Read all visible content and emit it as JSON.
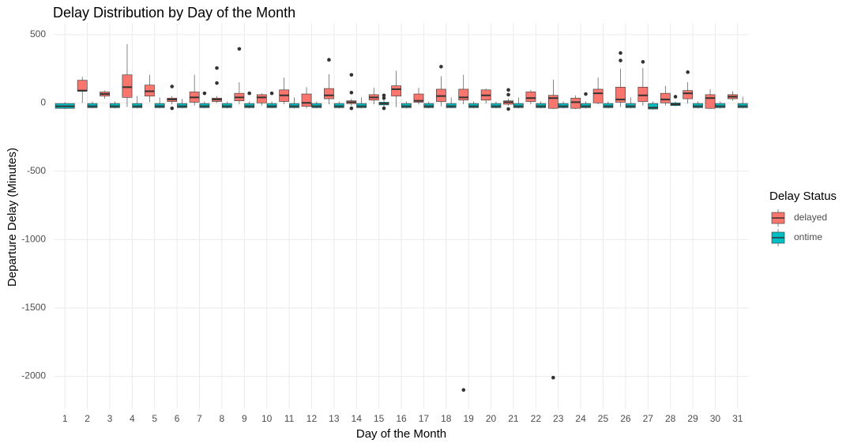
{
  "chart_data": {
    "type": "box",
    "title": "Delay Distribution by Day of the Month",
    "x_label": "Day of the Month",
    "y_label": "Departure Delay (Minutes)",
    "legend_title": "Delay Status",
    "legend_position": "right",
    "grid": true,
    "ylim": [
      -2240,
      585
    ],
    "yticks": [
      500,
      0,
      -500,
      -1000,
      -1500,
      -2000
    ],
    "categories": [
      "1",
      "2",
      "3",
      "4",
      "5",
      "6",
      "7",
      "8",
      "9",
      "10",
      "11",
      "12",
      "13",
      "14",
      "15",
      "16",
      "17",
      "18",
      "19",
      "20",
      "21",
      "22",
      "23",
      "24",
      "25",
      "26",
      "27",
      "28",
      "29",
      "30",
      "31"
    ],
    "series": [
      {
        "name": "delayed",
        "color": "#F8766D",
        "boxes": [
          null,
          {
            "min": 0,
            "q1": 85,
            "median": 90,
            "q3": 165,
            "max": 190
          },
          {
            "min": 30,
            "q1": 50,
            "median": 65,
            "q3": 80,
            "max": 90
          },
          {
            "min": -30,
            "q1": 40,
            "median": 115,
            "q3": 205,
            "max": 430
          },
          {
            "min": 5,
            "q1": 50,
            "median": 85,
            "q3": 130,
            "max": 205
          },
          {
            "min": -10,
            "q1": 10,
            "median": 25,
            "q3": 35,
            "max": 50,
            "outliers": [
              120,
              -40
            ]
          },
          {
            "min": -20,
            "q1": 5,
            "median": 40,
            "q3": 80,
            "max": 205
          },
          {
            "min": 0,
            "q1": 10,
            "median": 25,
            "q3": 35,
            "max": 50,
            "outliers": [
              255,
              145
            ]
          },
          {
            "min": -10,
            "q1": 15,
            "median": 40,
            "q3": 70,
            "max": 150,
            "outliers": [
              395
            ]
          },
          {
            "min": -20,
            "q1": 0,
            "median": 40,
            "q3": 60,
            "max": 70
          },
          {
            "min": -10,
            "q1": 10,
            "median": 55,
            "q3": 95,
            "max": 185
          },
          {
            "min": -40,
            "q1": -25,
            "median": 0,
            "q3": 65,
            "max": 115
          },
          {
            "min": -10,
            "q1": 30,
            "median": 55,
            "q3": 105,
            "max": 210,
            "outliers": [
              315
            ]
          },
          {
            "min": -20,
            "q1": -5,
            "median": 5,
            "q3": 15,
            "max": 30,
            "outliers": [
              205,
              75,
              -40
            ]
          },
          {
            "min": -10,
            "q1": 20,
            "median": 40,
            "q3": 60,
            "max": 110
          },
          {
            "min": -30,
            "q1": 50,
            "median": 100,
            "q3": 125,
            "max": 235
          },
          {
            "min": -10,
            "q1": 5,
            "median": 15,
            "q3": 65,
            "max": 110
          },
          {
            "min": -25,
            "q1": 10,
            "median": 50,
            "q3": 100,
            "max": 195,
            "outliers": [
              265
            ]
          },
          {
            "min": -10,
            "q1": 20,
            "median": 40,
            "q3": 100,
            "max": 205,
            "outliers": [
              -2100
            ]
          },
          {
            "min": -5,
            "q1": 20,
            "median": 55,
            "q3": 95,
            "max": 105
          },
          {
            "min": -20,
            "q1": -10,
            "median": 5,
            "q3": 15,
            "max": 30,
            "outliers": [
              95,
              60,
              -45
            ]
          },
          {
            "min": -10,
            "q1": 10,
            "median": 35,
            "q3": 80,
            "max": 95
          },
          {
            "min": -45,
            "q1": -40,
            "median": 35,
            "q3": 55,
            "max": 170,
            "outliers": [
              -2010
            ]
          },
          {
            "min": -45,
            "q1": -40,
            "median": 5,
            "q3": 35,
            "max": 55
          },
          {
            "min": -10,
            "q1": 0,
            "median": 70,
            "q3": 100,
            "max": 185
          },
          {
            "min": -30,
            "q1": 5,
            "median": 25,
            "q3": 115,
            "max": 250,
            "outliers": [
              365,
              310
            ]
          },
          {
            "min": -20,
            "q1": 10,
            "median": 55,
            "q3": 115,
            "max": 255,
            "outliers": [
              300
            ]
          },
          {
            "min": -20,
            "q1": 0,
            "median": 25,
            "q3": 70,
            "max": 125
          },
          {
            "min": -5,
            "q1": 30,
            "median": 70,
            "q3": 90,
            "max": 150,
            "outliers": [
              225
            ]
          },
          {
            "min": -45,
            "q1": -40,
            "median": 35,
            "q3": 60,
            "max": 100
          },
          {
            "min": 15,
            "q1": 30,
            "median": 45,
            "q3": 60,
            "max": 85
          }
        ]
      },
      {
        "name": "ontime",
        "color": "#00BFC4",
        "boxes": [
          {
            "min": -45,
            "q1": -40,
            "median": -25,
            "q3": -5,
            "max": 5
          },
          {
            "min": -40,
            "q1": -35,
            "median": -25,
            "q3": -5,
            "max": 10
          },
          {
            "min": -40,
            "q1": -35,
            "median": -25,
            "q3": -5,
            "max": 10
          },
          {
            "min": -40,
            "q1": -35,
            "median": -25,
            "q3": -5,
            "max": 50
          },
          {
            "min": -40,
            "q1": -35,
            "median": -25,
            "q3": -5,
            "max": 40
          },
          {
            "min": -40,
            "q1": -35,
            "median": -25,
            "q3": -5,
            "max": 30
          },
          {
            "min": -40,
            "q1": -35,
            "median": -25,
            "q3": -5,
            "max": 10,
            "outliers": [
              70
            ]
          },
          {
            "min": -40,
            "q1": -35,
            "median": -25,
            "q3": -5,
            "max": 10
          },
          {
            "min": -40,
            "q1": -35,
            "median": -25,
            "q3": -5,
            "max": 10,
            "outliers": [
              70
            ]
          },
          {
            "min": -40,
            "q1": -35,
            "median": -25,
            "q3": -5,
            "max": 10,
            "outliers": [
              70
            ]
          },
          {
            "min": -40,
            "q1": -35,
            "median": -25,
            "q3": -5,
            "max": 40
          },
          {
            "min": -40,
            "q1": -35,
            "median": -25,
            "q3": -5,
            "max": 10
          },
          {
            "min": -40,
            "q1": -35,
            "median": -25,
            "q3": -5,
            "max": 10
          },
          {
            "min": -40,
            "q1": -35,
            "median": -25,
            "q3": -5,
            "max": 40
          },
          {
            "min": -30,
            "q1": -15,
            "median": -5,
            "q3": 5,
            "max": 20,
            "outliers": [
              55,
              35,
              -40
            ]
          },
          {
            "min": -40,
            "q1": -35,
            "median": -25,
            "q3": -5,
            "max": 10
          },
          {
            "min": -40,
            "q1": -35,
            "median": -25,
            "q3": -5,
            "max": 10
          },
          {
            "min": -40,
            "q1": -35,
            "median": -25,
            "q3": -5,
            "max": 40
          },
          {
            "min": -40,
            "q1": -35,
            "median": -25,
            "q3": -5,
            "max": 10
          },
          {
            "min": -40,
            "q1": -35,
            "median": -25,
            "q3": -5,
            "max": 10
          },
          {
            "min": -40,
            "q1": -35,
            "median": -25,
            "q3": -5,
            "max": 40
          },
          {
            "min": -40,
            "q1": -35,
            "median": -25,
            "q3": -5,
            "max": 10
          },
          {
            "min": -40,
            "q1": -35,
            "median": -25,
            "q3": -5,
            "max": 10
          },
          {
            "min": -40,
            "q1": -35,
            "median": -25,
            "q3": -5,
            "max": 10,
            "outliers": [
              65
            ]
          },
          {
            "min": -40,
            "q1": -35,
            "median": -25,
            "q3": -5,
            "max": 10
          },
          {
            "min": -40,
            "q1": -35,
            "median": -25,
            "q3": -5,
            "max": 40
          },
          {
            "min": -50,
            "q1": -45,
            "median": -35,
            "q3": -5,
            "max": 10
          },
          {
            "min": -25,
            "q1": -20,
            "median": -10,
            "q3": 0,
            "max": 10,
            "outliers": [
              45
            ]
          },
          {
            "min": -40,
            "q1": -35,
            "median": -25,
            "q3": -5,
            "max": 10
          },
          {
            "min": -40,
            "q1": -35,
            "median": -25,
            "q3": -5,
            "max": 10
          },
          {
            "min": -40,
            "q1": -35,
            "median": -25,
            "q3": -5,
            "max": 45
          }
        ]
      }
    ]
  }
}
